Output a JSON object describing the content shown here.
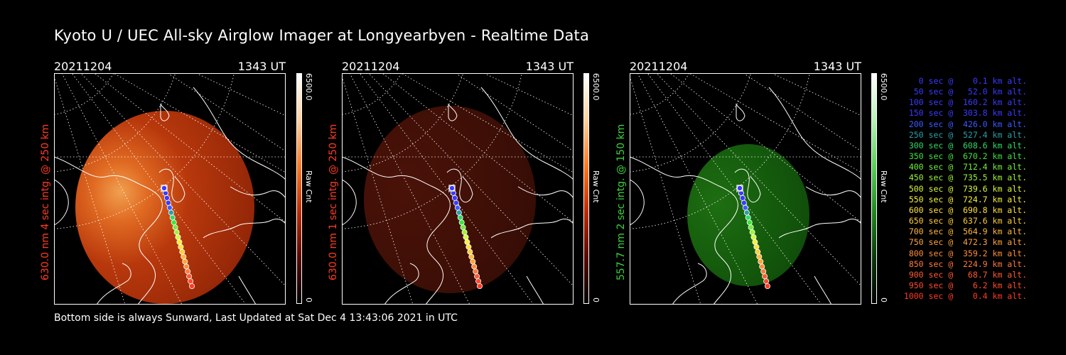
{
  "title": "Kyoto U / UEC All-sky Airglow Imager at Longyearbyen - Realtime Data",
  "footer": "Bottom side is always Sunward, Last Updated at Sat Dec  4 13:43:06 2021 in UTC",
  "colors": {
    "background": "#000000",
    "red_label": "#ff3b22",
    "green_label": "#3cd23c"
  },
  "panels": [
    {
      "date": "20211204",
      "time": "1343 UT",
      "ylabel": "630.0 nm 4 sec intg. @ 250 km",
      "label_color": "#ff3b22",
      "colorbar_max": "6500.0",
      "colorbar_min": "0",
      "colorbar_unit": "Raw Cnt",
      "colormap": "red",
      "brightness": "bright"
    },
    {
      "date": "20211204",
      "time": "1343 UT",
      "ylabel": "630.0 nm 1 sec intg. @ 250 km",
      "label_color": "#ff3b22",
      "colorbar_max": "6500.0",
      "colorbar_min": "0",
      "colorbar_unit": "Raw Cnt",
      "colormap": "red",
      "brightness": "dim"
    },
    {
      "date": "20211204",
      "time": "1343 UT",
      "ylabel": "557.7 nm 2 sec intg. @ 150 km",
      "label_color": "#3cd23c",
      "colorbar_max": "6500.0",
      "colorbar_min": "0",
      "colorbar_unit": "Raw Cnt",
      "colormap": "green",
      "brightness": "dim"
    }
  ],
  "legend": [
    {
      "text": "0 sec @    0.1 km alt.",
      "color": "#3a3aff"
    },
    {
      "text": "50 sec @   52.0 km alt.",
      "color": "#3a3aff"
    },
    {
      "text": "100 sec @  160.2 km alt.",
      "color": "#3a3aff"
    },
    {
      "text": "150 sec @  303.8 km alt.",
      "color": "#3a3aff"
    },
    {
      "text": "200 sec @  426.0 km alt.",
      "color": "#3a5cff"
    },
    {
      "text": "250 sec @  527.4 km alt.",
      "color": "#2a9fa8"
    },
    {
      "text": "300 sec @  608.6 km alt.",
      "color": "#2fd96a"
    },
    {
      "text": "350 sec @  670.2 km alt.",
      "color": "#3ee33e"
    },
    {
      "text": "400 sec @  712.4 km alt.",
      "color": "#6ef03a"
    },
    {
      "text": "450 sec @  735.5 km alt.",
      "color": "#9cf53a"
    },
    {
      "text": "500 sec @  739.6 km alt.",
      "color": "#d6f83a"
    },
    {
      "text": "550 sec @  724.7 km alt.",
      "color": "#f6f03a"
    },
    {
      "text": "600 sec @  690.8 km alt.",
      "color": "#ffe03a"
    },
    {
      "text": "650 sec @  637.6 km alt.",
      "color": "#ffcd3a"
    },
    {
      "text": "700 sec @  564.9 km alt.",
      "color": "#ffb83a"
    },
    {
      "text": "750 sec @  472.3 km alt.",
      "color": "#ffa33a"
    },
    {
      "text": "800 sec @  359.2 km alt.",
      "color": "#ff8c3a"
    },
    {
      "text": "850 sec @  224.9 km alt.",
      "color": "#ff7a3a"
    },
    {
      "text": "900 sec @   68.7 km alt.",
      "color": "#ff5a32"
    },
    {
      "text": "950 sec @    6.2 km alt.",
      "color": "#ff4a2e"
    },
    {
      "text": "1000 sec @    0.4 km alt.",
      "color": "#ff3b22"
    }
  ]
}
